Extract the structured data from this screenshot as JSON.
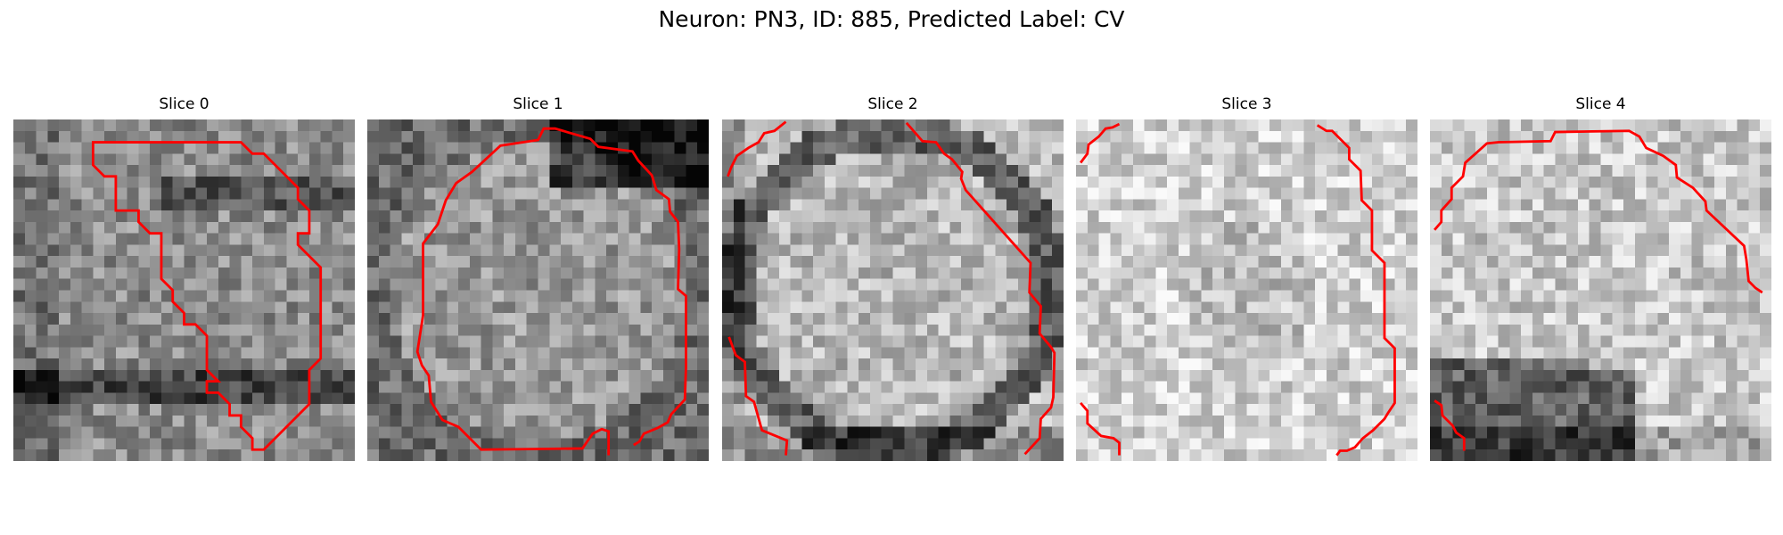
{
  "figure": {
    "title": "Neuron: PN3, ID: 885, Predicted Label: CV"
  },
  "colors": {
    "contour": "#ff0000"
  },
  "panels": [
    {
      "title": "Slice 0",
      "dark_ring": "inner-left",
      "brightness": 0.55
    },
    {
      "title": "Slice 1",
      "dark_ring": "top",
      "brightness": 0.6
    },
    {
      "title": "Slice 2",
      "dark_ring": "border",
      "brightness": 0.72
    },
    {
      "title": "Slice 3",
      "dark_ring": "none",
      "brightness": 0.82
    },
    {
      "title": "Slice 4",
      "dark_ring": "bottom-left",
      "brightness": 0.78
    }
  ]
}
